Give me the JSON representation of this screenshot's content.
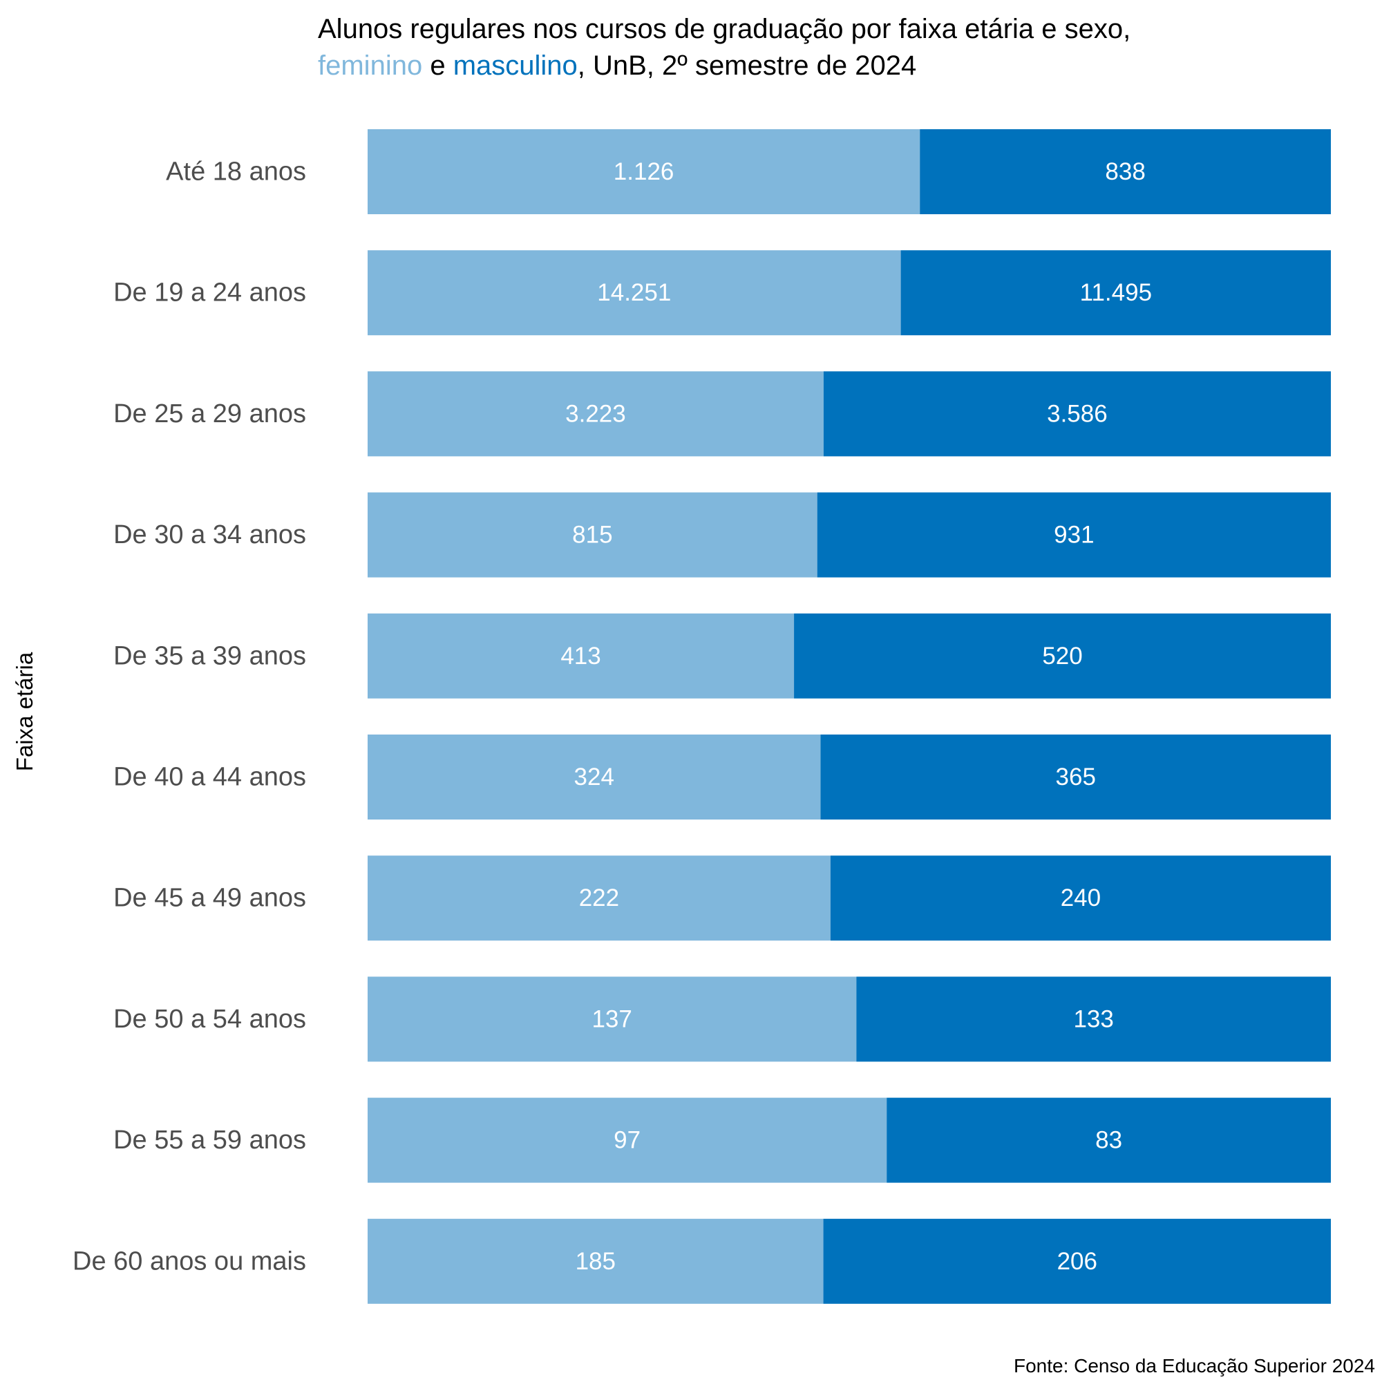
{
  "chart_data": {
    "type": "bar",
    "orientation": "horizontal",
    "stacking": "percent",
    "title": {
      "line1": "Alunos regulares nos cursos de graduação por faixa etária e sexo,",
      "line2_part1": "feminino",
      "line2_part2": " e ",
      "line2_part3": "masculino",
      "line2_part4": ", UnB, 2º semestre de 2024"
    },
    "ylabel": "Faixa etária",
    "xlabel": "",
    "caption": "Fonte: Censo da Educação Superior 2024",
    "legend": "in-title",
    "grid": false,
    "categories": [
      "Até 18 anos",
      "De 19 a 24 anos",
      "De 25 a 29 anos",
      "De 30 a 34 anos",
      "De 35 a 39 anos",
      "De 40 a 44 anos",
      "De 45 a 49 anos",
      "De 50 a 54 anos",
      "De 55 a 59 anos",
      "De 60 anos ou mais"
    ],
    "series": [
      {
        "name": "feminino",
        "color": "#80B7DC",
        "values": [
          1126,
          14251,
          3223,
          815,
          413,
          324,
          222,
          137,
          97,
          185
        ],
        "labels": [
          "1.126",
          "14.251",
          "3.223",
          "815",
          "413",
          "324",
          "222",
          "137",
          "97",
          "185"
        ]
      },
      {
        "name": "masculino",
        "color": "#0072BC",
        "values": [
          838,
          11495,
          3586,
          931,
          520,
          365,
          240,
          133,
          83,
          206
        ],
        "labels": [
          "838",
          "11.495",
          "3.586",
          "931",
          "520",
          "365",
          "240",
          "133",
          "83",
          "206"
        ]
      }
    ]
  }
}
